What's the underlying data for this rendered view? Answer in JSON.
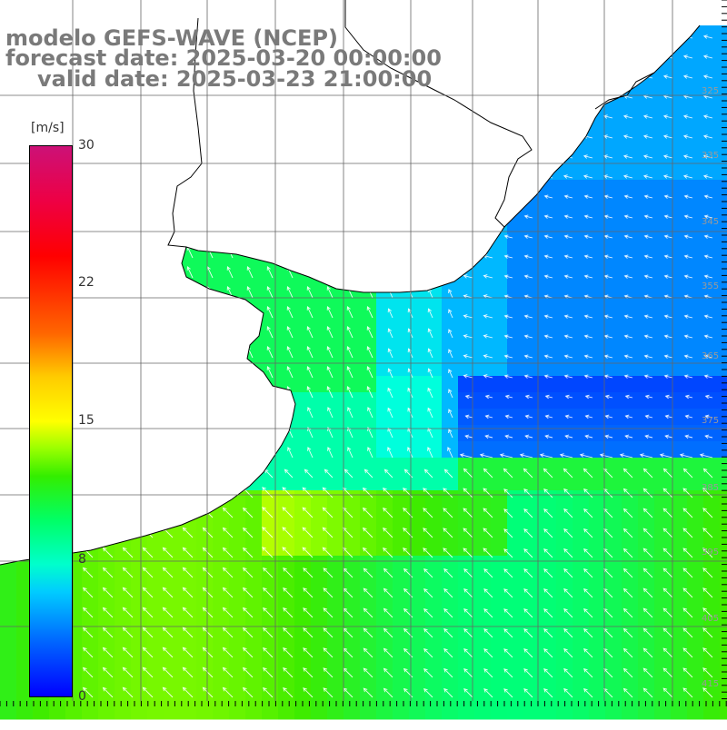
{
  "title_lines": {
    "model": "modelo GEFS-WAVE (NCEP)",
    "forecast": "forecast date: 2025-03-20 00:00:00",
    "valid": "valid date: 2025-03-23 21:00:00"
  },
  "colorbar": {
    "unit": "[m/s]",
    "ticks": [
      "30",
      "22",
      "15",
      "8",
      "0"
    ],
    "range": [
      0,
      30
    ],
    "colors": [
      "#0000ff",
      "#00ccff",
      "#00ff66",
      "#ffff00",
      "#ff0000",
      "#cc1177"
    ]
  },
  "grid_labels": {
    "lat": [
      "325",
      "335",
      "345",
      "355",
      "365",
      "375",
      "385",
      "395",
      "405",
      "415"
    ]
  },
  "map": {
    "field": "wind speed with direction arrows",
    "land_color": "#ffffff",
    "coastline_color": "#000000",
    "grid_color": "#666666"
  }
}
